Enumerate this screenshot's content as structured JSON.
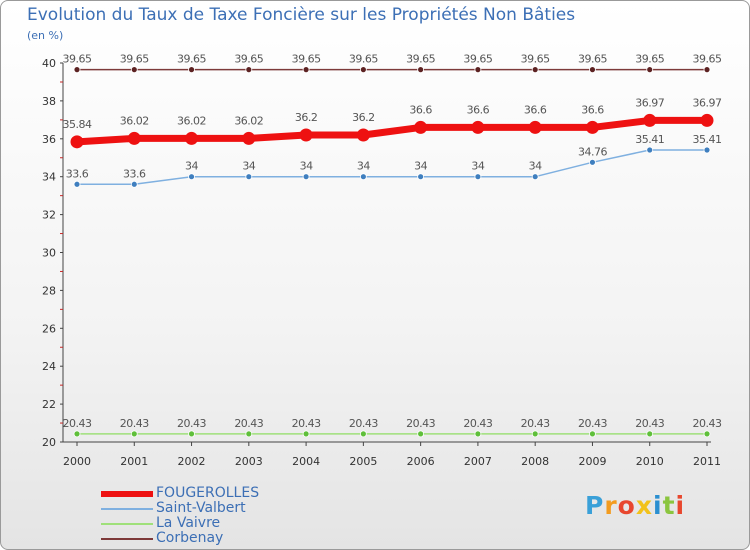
{
  "header": {
    "title": "Evolution du Taux de Taxe Foncière sur les Propriétés Non Bâties",
    "unit": "(en %)"
  },
  "logo": {
    "letters": [
      "P",
      "r",
      "o",
      "x",
      "i",
      "t",
      "i"
    ],
    "colors": [
      "#3aa0d8",
      "#f39c1f",
      "#e8472e",
      "#f2c21b",
      "#2b8fd0",
      "#8bc53f",
      "#e8472e"
    ]
  },
  "chart_data": {
    "type": "line",
    "x": [
      "2000",
      "2001",
      "2002",
      "2003",
      "2004",
      "2005",
      "2006",
      "2007",
      "2008",
      "2009",
      "2010",
      "2011"
    ],
    "ylim": [
      20,
      40
    ],
    "yticks": [
      "20",
      "22",
      "24",
      "26",
      "28",
      "30",
      "32",
      "34",
      "36",
      "38",
      "40"
    ],
    "grid": false,
    "legend_position": "bottom-left",
    "series": [
      {
        "name": "Corbenay",
        "color": "#7d3a3a",
        "marker_color": "#5c2222",
        "values": [
          39.65,
          39.65,
          39.65,
          39.65,
          39.65,
          39.65,
          39.65,
          39.65,
          39.65,
          39.65,
          39.65,
          39.65
        ],
        "labels": [
          "39.65",
          "39.65",
          "39.65",
          "39.65",
          "39.65",
          "39.65",
          "39.65",
          "39.65",
          "39.65",
          "39.65",
          "39.65",
          "39.65"
        ]
      },
      {
        "name": "La Vaivre",
        "color": "#9fe07a",
        "marker_color": "#5fbf3a",
        "values": [
          20.43,
          20.43,
          20.43,
          20.43,
          20.43,
          20.43,
          20.43,
          20.43,
          20.43,
          20.43,
          20.43,
          20.43
        ],
        "labels": [
          "20.43",
          "20.43",
          "20.43",
          "20.43",
          "20.43",
          "20.43",
          "20.43",
          "20.43",
          "20.43",
          "20.43",
          "20.43",
          "20.43"
        ]
      },
      {
        "name": "Saint-Valbert",
        "color": "#7fb0e0",
        "marker_color": "#3f7fbf",
        "values": [
          33.6,
          33.6,
          34,
          34,
          34,
          34,
          34,
          34,
          34,
          34.76,
          35.41,
          35.41
        ],
        "labels": [
          "33.6",
          "33.6",
          "34",
          "34",
          "34",
          "34",
          "34",
          "34",
          "34",
          "34.76",
          "35.41",
          "35.41"
        ]
      },
      {
        "name": "FOUGEROLLES",
        "color": "#ee1111",
        "marker_color": "#ee1111",
        "values": [
          35.84,
          36.02,
          36.02,
          36.02,
          36.2,
          36.2,
          36.6,
          36.6,
          36.6,
          36.6,
          36.97,
          36.97
        ],
        "labels": [
          "35.84",
          "36.02",
          "36.02",
          "36.02",
          "36.2",
          "36.2",
          "36.6",
          "36.6",
          "36.6",
          "36.6",
          "36.97",
          "36.97"
        ]
      }
    ],
    "legend": [
      "FOUGEROLLES",
      "Saint-Valbert",
      "La Vaivre",
      "Corbenay"
    ]
  }
}
